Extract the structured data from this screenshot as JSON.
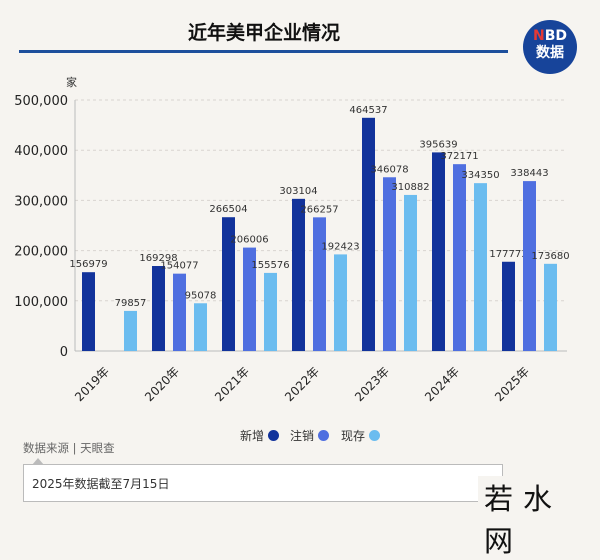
{
  "title": "近年美甲企业情况",
  "logo": {
    "n": "N",
    "bd": "BD",
    "label": "数据"
  },
  "source": "数据来源 | 天眼查",
  "note": "2025年数据截至7月15日",
  "watermark": "若水网",
  "chart_data": {
    "type": "bar",
    "title": "近年美甲企业情况",
    "ylabel": "家",
    "ylim": [
      0,
      500000
    ],
    "yticks": [
      "0",
      "100,000",
      "200,000",
      "300,000",
      "400,000",
      "500,000"
    ],
    "grid": true,
    "legend_position": "bottom",
    "categories": [
      "2019年",
      "2020年",
      "2021年",
      "2022年",
      "2023年",
      "2024年",
      "2025年"
    ],
    "series": [
      {
        "name": "新增",
        "color": "#12339b",
        "values": [
          156979,
          169298,
          266504,
          303104,
          464537,
          395639,
          177773
        ]
      },
      {
        "name": "注销",
        "color": "#4f6fe0",
        "values": [
          null,
          154077,
          206006,
          266257,
          346078,
          372171,
          338443
        ]
      },
      {
        "name": "现存",
        "color": "#6bbcef",
        "values": [
          79857,
          95078,
          155576,
          192423,
          310882,
          334350,
          173680
        ]
      }
    ]
  }
}
